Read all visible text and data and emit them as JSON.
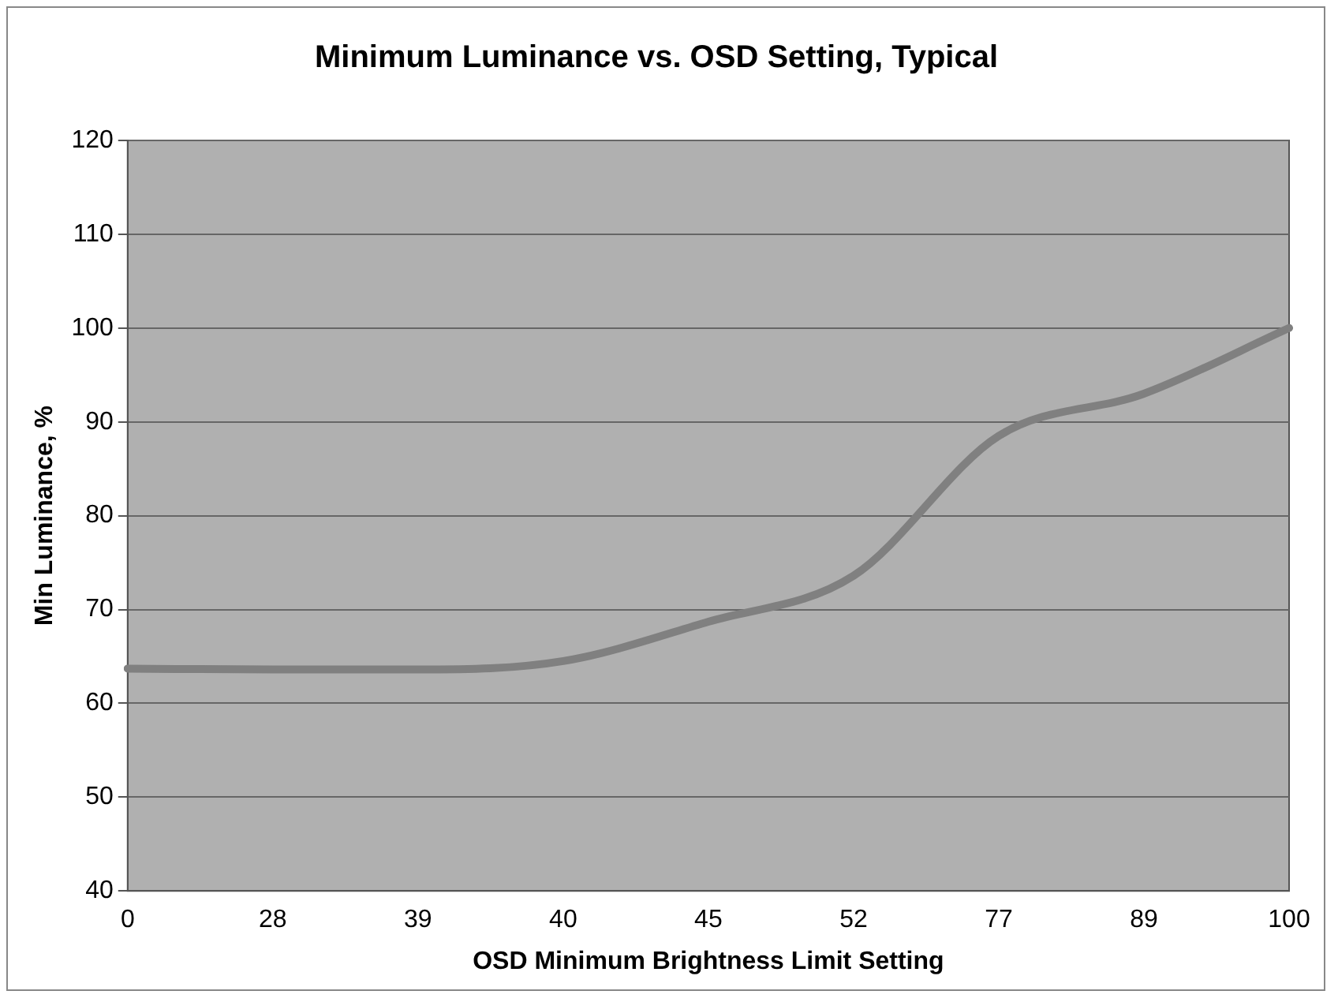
{
  "chart_data": {
    "type": "line",
    "title": "Minimum Luminance vs. OSD Setting, Typical",
    "xlabel": "OSD Minimum Brightness Limit Setting",
    "ylabel": "Min Luminance, %",
    "categories": [
      "0",
      "28",
      "39",
      "40",
      "45",
      "52",
      "77",
      "89",
      "100"
    ],
    "series": [
      {
        "color": "#808080",
        "values": [
          63.7,
          63.6,
          63.6,
          64.5,
          68.7,
          73.6,
          88.5,
          93,
          100
        ]
      }
    ],
    "ylim": [
      40,
      120
    ],
    "yticks": [
      40,
      50,
      60,
      70,
      80,
      90,
      100,
      110,
      120
    ],
    "grid": "y",
    "legend": false,
    "marker": "none",
    "line_style": "solid"
  }
}
